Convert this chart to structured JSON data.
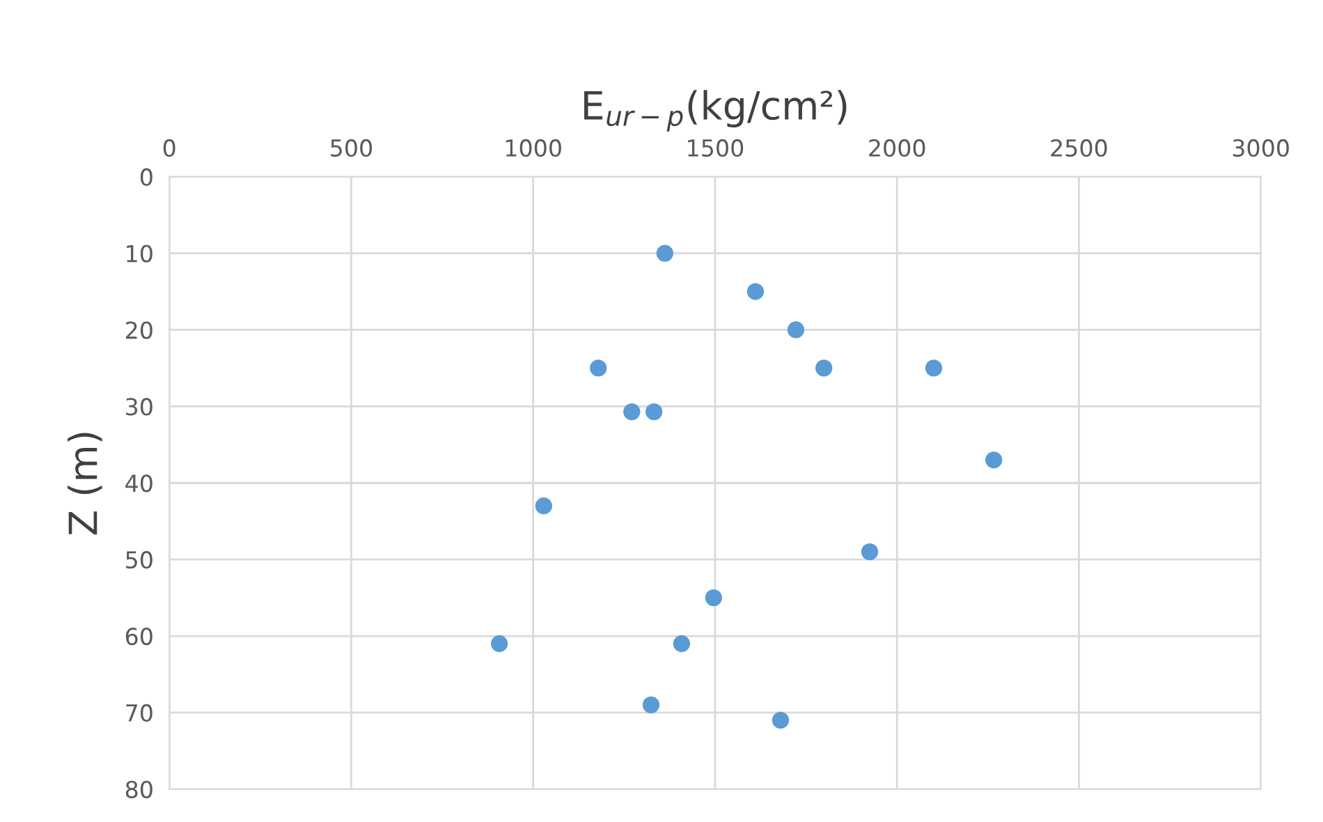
{
  "chart_data": {
    "type": "scatter",
    "xlabel": "E$_{ur−p}$(kg/cm²)",
    "ylabel": "Z (m)",
    "x": [
      1362,
      1611,
      1722,
      1799,
      2101,
      1179,
      1271,
      1332,
      2266,
      1029,
      1925,
      1496,
      907,
      1408,
      1324,
      1680
    ],
    "series": [
      {
        "color": "#5b9bd5",
        "values": [
          10,
          15,
          20,
          25,
          25,
          25,
          30.7,
          30.7,
          37,
          43,
          49,
          55,
          61,
          61,
          69,
          71
        ]
      }
    ],
    "xlim": [
      0,
      3000
    ],
    "xticks": [
      0,
      500,
      1000,
      1500,
      2000,
      2500,
      3000
    ],
    "ylim": [
      80,
      0
    ],
    "yticks": [
      0,
      10,
      20,
      30,
      40,
      50,
      60,
      70,
      80
    ],
    "grid": true,
    "marker": "circle",
    "legend": false
  }
}
